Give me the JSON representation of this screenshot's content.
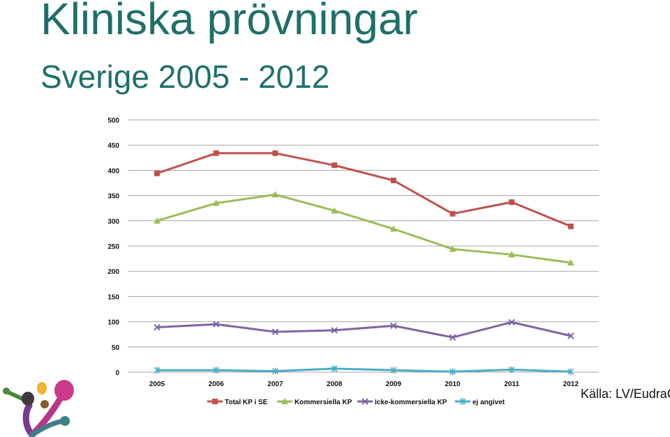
{
  "header": {
    "title": "Kliniska prövningar",
    "subtitle": "Sverige 2005 - 2012"
  },
  "source": "Källa: LV/EudraCT",
  "chart_data": {
    "type": "line",
    "categories": [
      "2005",
      "2006",
      "2007",
      "2008",
      "2009",
      "2010",
      "2011",
      "2012"
    ],
    "ylim": [
      0,
      500
    ],
    "yticks": [
      0,
      50,
      100,
      150,
      200,
      250,
      300,
      350,
      400,
      450,
      500
    ],
    "grid": true,
    "legend_position": "bottom",
    "series": [
      {
        "name": "Total KP i SE",
        "color": "#c0504d",
        "marker": "square",
        "values": [
          394,
          434,
          434,
          410,
          380,
          314,
          337,
          289
        ]
      },
      {
        "name": "Kommersiella KP",
        "color": "#9bbb59",
        "marker": "triangle",
        "values": [
          300,
          335,
          352,
          320,
          284,
          244,
          233,
          217
        ]
      },
      {
        "name": "Icke-kommersiella KP",
        "color": "#8064a2",
        "marker": "x",
        "values": [
          89,
          95,
          80,
          83,
          92,
          69,
          99,
          72
        ]
      },
      {
        "name": "ej angivet",
        "color": "#4bacc6",
        "marker": "star",
        "values": [
          4,
          4,
          2,
          7,
          4,
          1,
          5,
          1
        ]
      }
    ]
  },
  "logo": {
    "icon": "organization-logo-icon"
  }
}
